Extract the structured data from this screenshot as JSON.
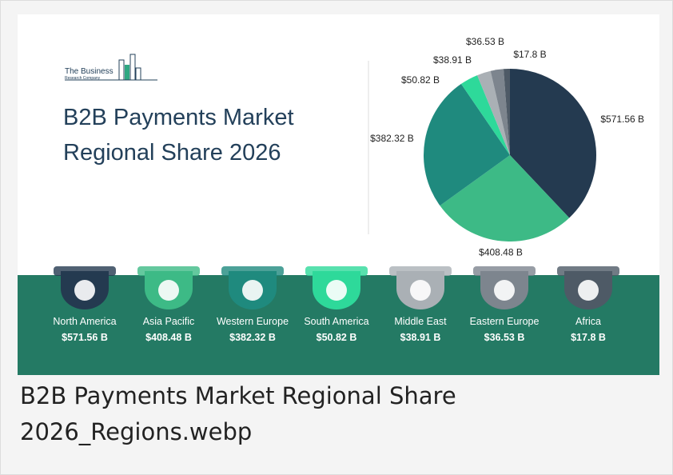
{
  "logo": {
    "line1": "The Business",
    "line2": "Research Company"
  },
  "chart_data": {
    "type": "pie",
    "title": "B2B Payments Market Regional Share 2026",
    "categories": [
      "North America",
      "Asia Pacific",
      "Western Europe",
      "South America",
      "Middle East",
      "Eastern Europe",
      "Africa"
    ],
    "values": [
      571.56,
      408.48,
      382.32,
      50.82,
      38.91,
      36.53,
      17.8
    ],
    "value_labels": [
      "$571.56 B",
      "$408.48 B",
      "$382.32 B",
      "$50.82 B",
      "$38.91 B",
      "$36.53 B",
      "$17.8 B"
    ],
    "colors": [
      "#243a50",
      "#3dba86",
      "#1f8a7e",
      "#2ed99a",
      "#aab0b5",
      "#7d858e",
      "#4e5a66"
    ]
  },
  "caption": "B2B Payments Market Regional Share 2026_Regions.webp"
}
